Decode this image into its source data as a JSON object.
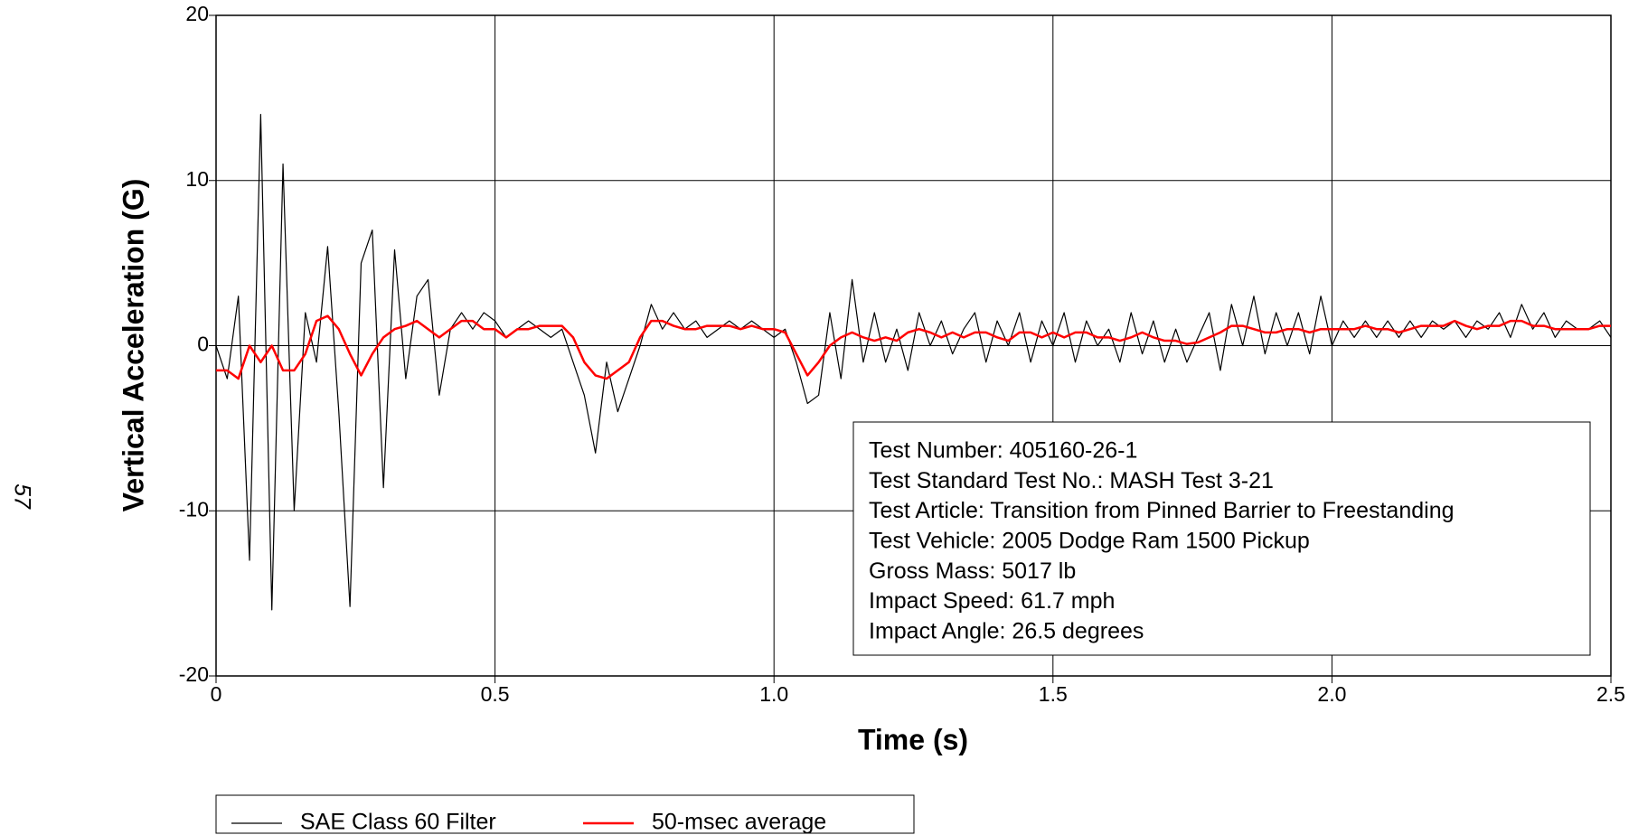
{
  "page_number": "57",
  "chart_data": {
    "type": "line",
    "xlabel": "Time (s)",
    "ylabel": "Vertical Acceleration (G)",
    "x": [
      0,
      0.02,
      0.04,
      0.06,
      0.08,
      0.1,
      0.12,
      0.14,
      0.16,
      0.18,
      0.2,
      0.22,
      0.24,
      0.26,
      0.28,
      0.3,
      0.32,
      0.34,
      0.36,
      0.38,
      0.4,
      0.42,
      0.44,
      0.46,
      0.48,
      0.5,
      0.52,
      0.54,
      0.56,
      0.58,
      0.6,
      0.62,
      0.64,
      0.66,
      0.68,
      0.7,
      0.72,
      0.74,
      0.76,
      0.78,
      0.8,
      0.82,
      0.84,
      0.86,
      0.88,
      0.9,
      0.92,
      0.94,
      0.96,
      0.98,
      1.0,
      1.02,
      1.04,
      1.06,
      1.08,
      1.1,
      1.12,
      1.14,
      1.16,
      1.18,
      1.2,
      1.22,
      1.24,
      1.26,
      1.28,
      1.3,
      1.32,
      1.34,
      1.36,
      1.38,
      1.4,
      1.42,
      1.44,
      1.46,
      1.48,
      1.5,
      1.52,
      1.54,
      1.56,
      1.58,
      1.6,
      1.62,
      1.64,
      1.66,
      1.68,
      1.7,
      1.72,
      1.74,
      1.76,
      1.78,
      1.8,
      1.82,
      1.84,
      1.86,
      1.88,
      1.9,
      1.92,
      1.94,
      1.96,
      1.98,
      2.0,
      2.02,
      2.04,
      2.06,
      2.08,
      2.1,
      2.12,
      2.14,
      2.16,
      2.18,
      2.2,
      2.22,
      2.24,
      2.26,
      2.28,
      2.3,
      2.32,
      2.34,
      2.36,
      2.38,
      2.4,
      2.42,
      2.44,
      2.46,
      2.48,
      2.5
    ],
    "series": [
      {
        "name": "SAE Class 60 Filter",
        "color": "#000000",
        "width": 1.2,
        "values": [
          0,
          -2,
          3,
          -13,
          14,
          -16,
          11,
          -10,
          2,
          -1,
          6,
          -4,
          -15.8,
          5,
          7,
          -8.6,
          5.8,
          -2,
          3,
          4,
          -3,
          1,
          2,
          1,
          2,
          1.5,
          0.5,
          1,
          1.5,
          1,
          0.5,
          1,
          -1,
          -3,
          -6.5,
          -1,
          -4,
          -2,
          0,
          2.5,
          1,
          2,
          1,
          1.5,
          0.5,
          1,
          1.5,
          1,
          1.5,
          1,
          0.5,
          1,
          -1,
          -3.5,
          -3,
          2,
          -2,
          4,
          -1,
          2,
          -1,
          1,
          -1.5,
          2,
          0,
          1.5,
          -0.5,
          1,
          2,
          -1,
          1.5,
          0,
          2,
          -1,
          1.5,
          0,
          2,
          -1,
          1.5,
          0,
          1,
          -1,
          2,
          -0.5,
          1.5,
          -1,
          1,
          -1,
          0.5,
          2,
          -1.5,
          2.5,
          0,
          3,
          -0.5,
          2,
          0,
          2,
          -0.5,
          3,
          0,
          1.5,
          0.5,
          1.5,
          0.5,
          1.5,
          0.5,
          1.5,
          0.5,
          1.5,
          1,
          1.5,
          0.5,
          1.5,
          1,
          2,
          0.5,
          2.5,
          1,
          2,
          0.5,
          1.5,
          1,
          1,
          1.5,
          0.5
        ]
      },
      {
        "name": "50-msec average",
        "color": "#ff0000",
        "width": 2.5,
        "values": [
          -1.5,
          -1.5,
          -2,
          0,
          -1,
          0,
          -1.5,
          -1.5,
          -0.5,
          1.5,
          1.8,
          1,
          -0.5,
          -1.8,
          -0.5,
          0.5,
          1,
          1.2,
          1.5,
          1,
          0.5,
          1,
          1.5,
          1.5,
          1,
          1,
          0.5,
          1,
          1,
          1.2,
          1.2,
          1.2,
          0.5,
          -1,
          -1.8,
          -2,
          -1.5,
          -1,
          0.5,
          1.5,
          1.5,
          1.2,
          1,
          1,
          1.2,
          1.2,
          1.2,
          1,
          1.2,
          1,
          1,
          0.8,
          -0.5,
          -1.8,
          -1,
          0,
          0.5,
          0.8,
          0.5,
          0.3,
          0.5,
          0.3,
          0.8,
          1,
          0.8,
          0.5,
          0.8,
          0.5,
          0.8,
          0.8,
          0.5,
          0.3,
          0.8,
          0.8,
          0.5,
          0.8,
          0.5,
          0.8,
          0.8,
          0.5,
          0.5,
          0.3,
          0.5,
          0.8,
          0.5,
          0.3,
          0.3,
          0.1,
          0.2,
          0.5,
          0.8,
          1.2,
          1.2,
          1,
          0.8,
          0.8,
          1,
          1,
          0.8,
          1,
          1,
          1,
          1,
          1.2,
          1,
          1,
          0.8,
          1,
          1.2,
          1.2,
          1.2,
          1.5,
          1.2,
          1,
          1.2,
          1.2,
          1.5,
          1.5,
          1.2,
          1.2,
          1,
          1,
          1,
          1,
          1.2,
          1.2
        ]
      }
    ],
    "xlim": [
      0,
      2.5
    ],
    "xticks": [
      0,
      0.5,
      {
        "value": 1,
        "label": "1.0"
      },
      1.5,
      {
        "value": 2,
        "label": "2.0"
      },
      2.5
    ],
    "ylim": [
      -20,
      20
    ],
    "yticks": [
      -20,
      -10,
      0,
      10,
      20
    ],
    "grid": true,
    "annotation": [
      "Test Number: 405160-26-1",
      "Test Standard Test No.: MASH Test 3-21",
      "Test Article: Transition from Pinned Barrier to Freestanding",
      "Test Vehicle: 2005 Dodge Ram 1500 Pickup",
      "Gross Mass: 5017 lb",
      "Impact Speed: 61.7 mph",
      "Impact Angle: 26.5 degrees"
    ]
  }
}
